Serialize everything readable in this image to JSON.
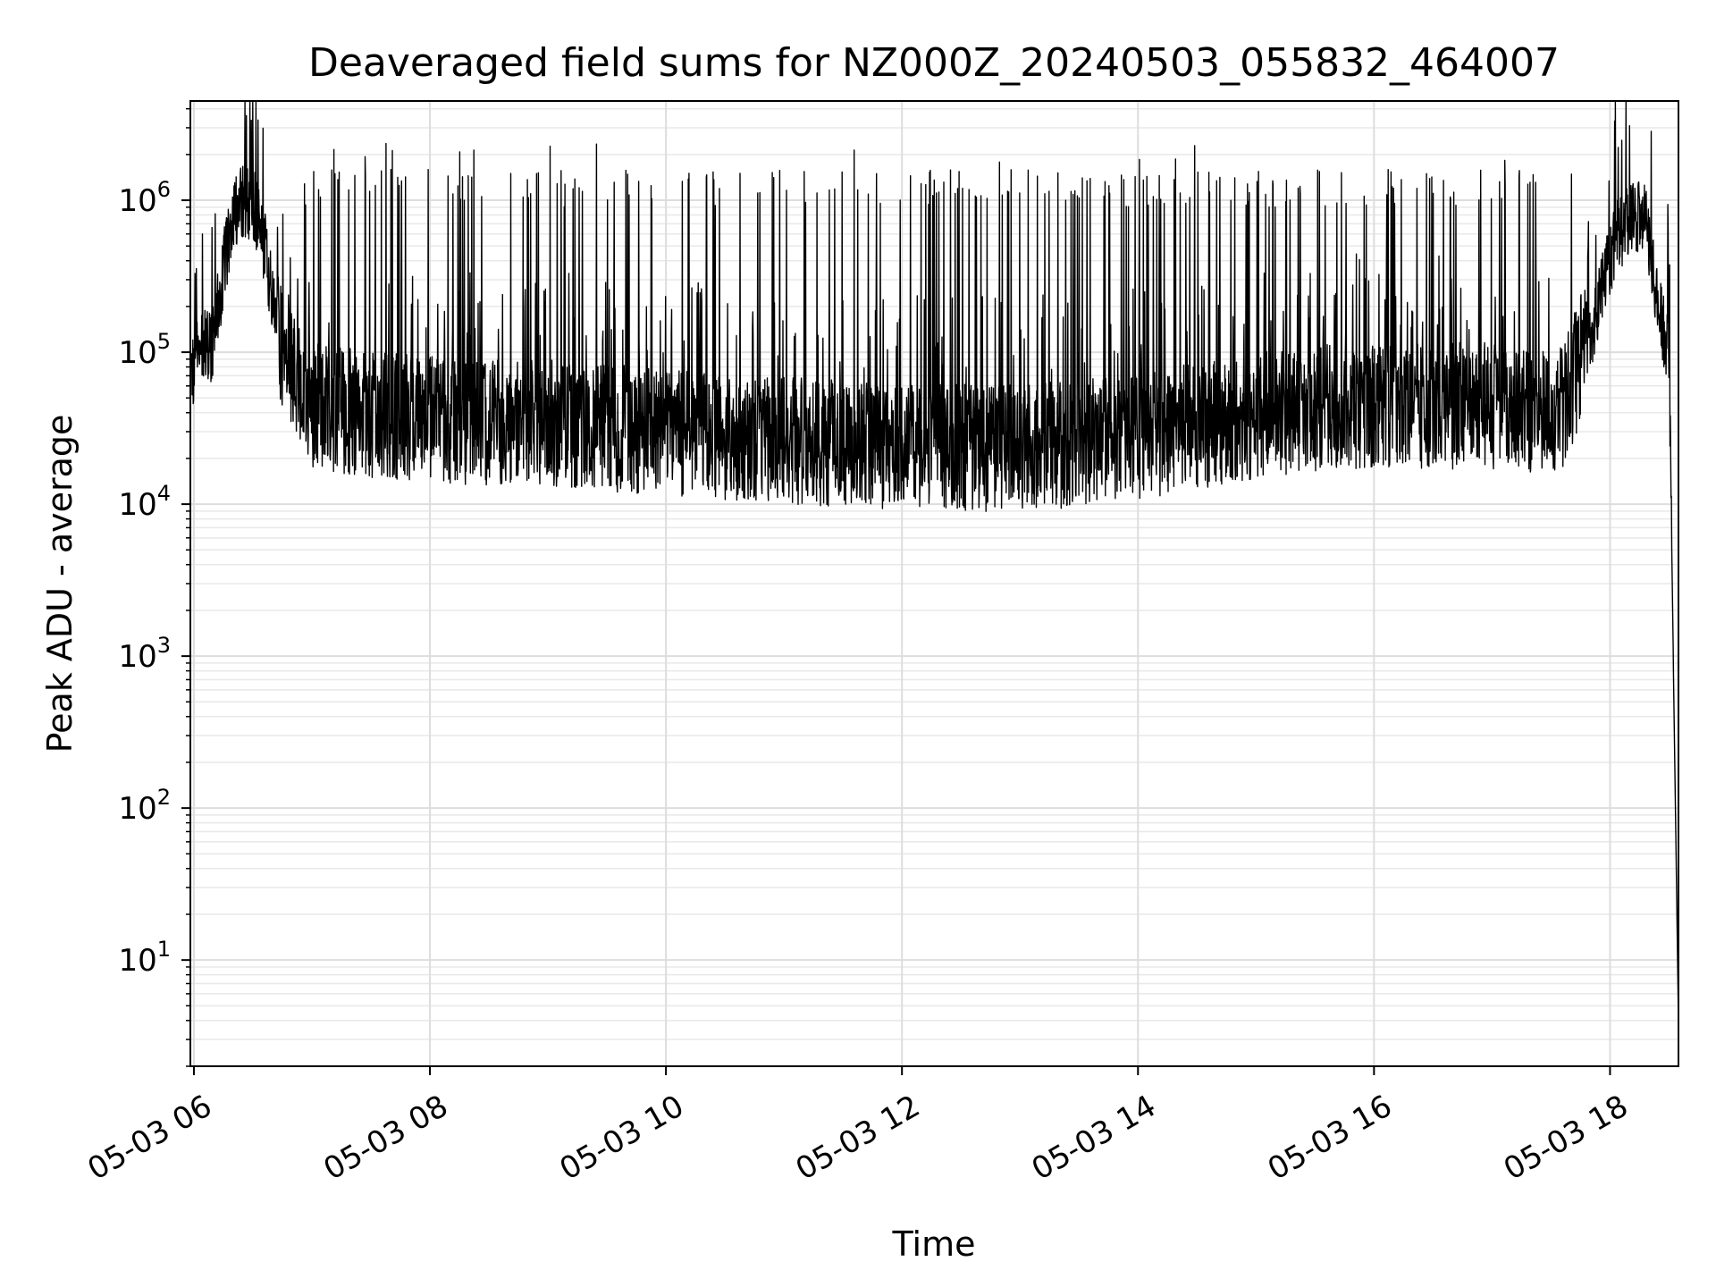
{
  "chart_data": {
    "type": "line",
    "title": "Deaveraged field sums for NZ000Z_20240503_055832_464007",
    "xlabel": "Time",
    "ylabel": "Peak ADU - average",
    "yscale": "log",
    "ylim": [
      2.0,
      4500000
    ],
    "xlim_hours": [
      5.97,
      18.58
    ],
    "grid": true,
    "x_ticks": [
      {
        "label": "05-03 06",
        "hour": 6
      },
      {
        "label": "05-03 08",
        "hour": 8
      },
      {
        "label": "05-03 10",
        "hour": 10
      },
      {
        "label": "05-03 12",
        "hour": 12
      },
      {
        "label": "05-03 14",
        "hour": 14
      },
      {
        "label": "05-03 16",
        "hour": 16
      },
      {
        "label": "05-03 18",
        "hour": 18
      }
    ],
    "y_ticks": [
      {
        "base": "10",
        "exp": "1",
        "value": 10
      },
      {
        "base": "10",
        "exp": "2",
        "value": 100
      },
      {
        "base": "10",
        "exp": "3",
        "value": 1000
      },
      {
        "base": "10",
        "exp": "4",
        "value": 10000
      },
      {
        "base": "10",
        "exp": "5",
        "value": 100000
      },
      {
        "base": "10",
        "exp": "6",
        "value": 1000000
      }
    ],
    "series_color": "#000000",
    "baseline_points": [
      {
        "hour": 5.97,
        "value": 75000
      },
      {
        "hour": 6.08,
        "value": 110000
      },
      {
        "hour": 6.15,
        "value": 100000
      },
      {
        "hour": 6.25,
        "value": 350000
      },
      {
        "hour": 6.35,
        "value": 900000
      },
      {
        "hour": 6.5,
        "value": 1000000
      },
      {
        "hour": 6.6,
        "value": 500000
      },
      {
        "hour": 6.7,
        "value": 160000
      },
      {
        "hour": 6.8,
        "value": 75000
      },
      {
        "hour": 7.0,
        "value": 45000
      },
      {
        "hour": 7.5,
        "value": 38000
      },
      {
        "hour": 8.0,
        "value": 36000
      },
      {
        "hour": 9.0,
        "value": 34000
      },
      {
        "hour": 10.0,
        "value": 30000
      },
      {
        "hour": 11.0,
        "value": 26000
      },
      {
        "hour": 12.0,
        "value": 24000
      },
      {
        "hour": 13.0,
        "value": 23000
      },
      {
        "hour": 14.0,
        "value": 28000
      },
      {
        "hour": 15.0,
        "value": 38000
      },
      {
        "hour": 16.0,
        "value": 46000
      },
      {
        "hour": 17.0,
        "value": 44000
      },
      {
        "hour": 17.6,
        "value": 42000
      },
      {
        "hour": 17.85,
        "value": 150000
      },
      {
        "hour": 18.05,
        "value": 550000
      },
      {
        "hour": 18.2,
        "value": 820000
      },
      {
        "hour": 18.3,
        "value": 780000
      },
      {
        "hour": 18.4,
        "value": 220000
      },
      {
        "hour": 18.5,
        "value": 90000
      },
      {
        "hour": 18.56,
        "value": 50
      },
      {
        "hour": 18.58,
        "value": 3.8
      }
    ],
    "spike_peak_range": [
      1000000,
      2400000
    ]
  }
}
